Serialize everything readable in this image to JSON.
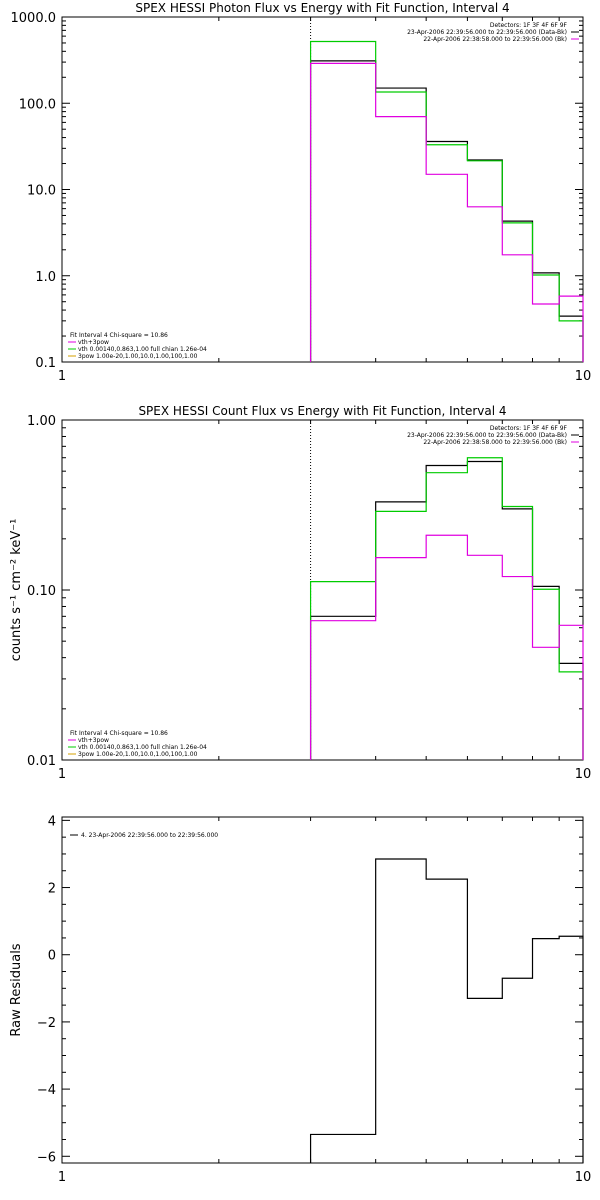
{
  "chart_data": [
    {
      "type": "line",
      "id": "photon",
      "title": "SPEX HESSI Photon Flux vs Energy with Fit Function, Interval 4",
      "ylabel": "",
      "xlabel": "",
      "xscale": "log",
      "yscale": "log",
      "xlim": [
        1,
        10
      ],
      "ylim": [
        0.1,
        1000
      ],
      "x_tick_labels": [
        {
          "v": 1,
          "t": "1"
        },
        {
          "v": 10,
          "t": "10"
        }
      ],
      "y_tick_labels": [
        {
          "v": 0.1,
          "t": "0.1"
        },
        {
          "v": 1,
          "t": "1.0"
        },
        {
          "v": 10,
          "t": "10.0"
        },
        {
          "v": 100,
          "t": "100.0"
        },
        {
          "v": 1000,
          "t": "1000.0"
        }
      ],
      "vline_x": 3.0,
      "grid": false,
      "bin_edges": [
        3.0,
        4.0,
        5.0,
        6.0,
        7.0,
        8.0,
        9.0,
        10.0
      ],
      "series": [
        {
          "color": "#000000",
          "values": [
            310,
            150,
            36,
            22,
            4.3,
            1.08,
            0.34
          ]
        },
        {
          "color": "#00cc00",
          "values": [
            520,
            135,
            33,
            21.5,
            4.1,
            1.02,
            0.3
          ]
        },
        {
          "color": "#e000e0",
          "values": [
            290,
            70,
            15,
            6.3,
            1.75,
            0.47,
            0.58
          ]
        }
      ],
      "legend_top_right": [
        {
          "text": "Detectors: 1F 3F 4F 6F 9F",
          "color": null
        },
        {
          "text": "23-Apr-2006 22:39:56.000 to 22:39:56.000 (Data-Bk)",
          "color": "#000000"
        },
        {
          "text": "22-Apr-2006 22:38:58.000 to 22:39:56.000 (Bk)",
          "color": "#e000e0"
        }
      ],
      "legend_bottom_left": [
        {
          "text": "Fit Interval 4   Chi-square = 10.86",
          "color": null
        },
        {
          "text": "vth+3pow",
          "color": "#e000e0"
        },
        {
          "text": "vth 0.00140,0.863,1.00   full chian 1.26e-04",
          "color": "#00cc00"
        },
        {
          "text": "3pow 1.00e-20,1.00,10.0,1.00,100,1.00",
          "color": "#d4a000"
        }
      ]
    },
    {
      "type": "line",
      "id": "count",
      "title": "SPEX HESSI Count Flux vs Energy with Fit Function, Interval 4",
      "ylabel": "counts s⁻¹ cm⁻² keV⁻¹",
      "xlabel": "",
      "xscale": "log",
      "yscale": "log",
      "xlim": [
        1,
        10
      ],
      "ylim": [
        0.01,
        1.0
      ],
      "x_tick_labels": [
        {
          "v": 1,
          "t": "1"
        },
        {
          "v": 10,
          "t": "10"
        }
      ],
      "y_tick_labels": [
        {
          "v": 0.01,
          "t": "0.01"
        },
        {
          "v": 0.1,
          "t": "0.10"
        },
        {
          "v": 1,
          "t": "1.00"
        }
      ],
      "vline_x": 3.0,
      "grid": false,
      "bin_edges": [
        3.0,
        4.0,
        5.0,
        6.0,
        7.0,
        8.0,
        9.0,
        10.0
      ],
      "series": [
        {
          "color": "#000000",
          "values": [
            0.07,
            0.33,
            0.54,
            0.57,
            0.3,
            0.105,
            0.037
          ]
        },
        {
          "color": "#00cc00",
          "values": [
            0.112,
            0.29,
            0.49,
            0.6,
            0.31,
            0.101,
            0.033
          ]
        },
        {
          "color": "#e000e0",
          "values": [
            0.066,
            0.155,
            0.21,
            0.16,
            0.12,
            0.046,
            0.062
          ]
        }
      ],
      "legend_top_right": [
        {
          "text": "Detectors: 1F 3F 4F 6F 9F",
          "color": null
        },
        {
          "text": "23-Apr-2006 22:39:56.000 to 22:39:56.000 (Data-Bk)",
          "color": "#000000"
        },
        {
          "text": "22-Apr-2006 22:38:58.000 to 22:39:56.000 (Bk)",
          "color": "#e000e0"
        }
      ],
      "legend_bottom_left": [
        {
          "text": "Fit Interval 4   Chi-square = 10.86",
          "color": null
        },
        {
          "text": "vth+3pow",
          "color": "#e000e0"
        },
        {
          "text": "vth 0.00140,0.863,1.00   full chian 1.26e-04",
          "color": "#00cc00"
        },
        {
          "text": "3pow 1.00e-20,1.00,10.0,1.00,100,1.00",
          "color": "#d4a000"
        }
      ]
    },
    {
      "type": "line",
      "id": "residuals",
      "title": "",
      "ylabel": "Raw Residuals",
      "xlabel": "",
      "xscale": "log",
      "yscale": "linear",
      "xlim": [
        1,
        10
      ],
      "ylim": [
        -6.2,
        4.1
      ],
      "x_tick_labels": [
        {
          "v": 1,
          "t": "1"
        },
        {
          "v": 10,
          "t": "10"
        }
      ],
      "y_tick_labels": [
        {
          "v": -6,
          "t": "−6"
        },
        {
          "v": -4,
          "t": "−4"
        },
        {
          "v": -2,
          "t": "−2"
        },
        {
          "v": 0,
          "t": "0"
        },
        {
          "v": 2,
          "t": "2"
        },
        {
          "v": 4,
          "t": "4"
        }
      ],
      "vline_x": null,
      "grid": false,
      "bin_edges": [
        3.0,
        4.0,
        5.0,
        6.0,
        7.0,
        8.0,
        9.0,
        10.0
      ],
      "series": [
        {
          "color": "#000000",
          "values": [
            -5.35,
            2.85,
            2.25,
            -1.3,
            -0.7,
            0.48,
            0.55
          ]
        }
      ],
      "legend_top_right": [],
      "legend_bottom_left": [],
      "legend_top_left": [
        {
          "text": "4. 23-Apr-2006 22:39:56.000 to 22:39:56.000",
          "color": "#000000"
        }
      ]
    }
  ]
}
